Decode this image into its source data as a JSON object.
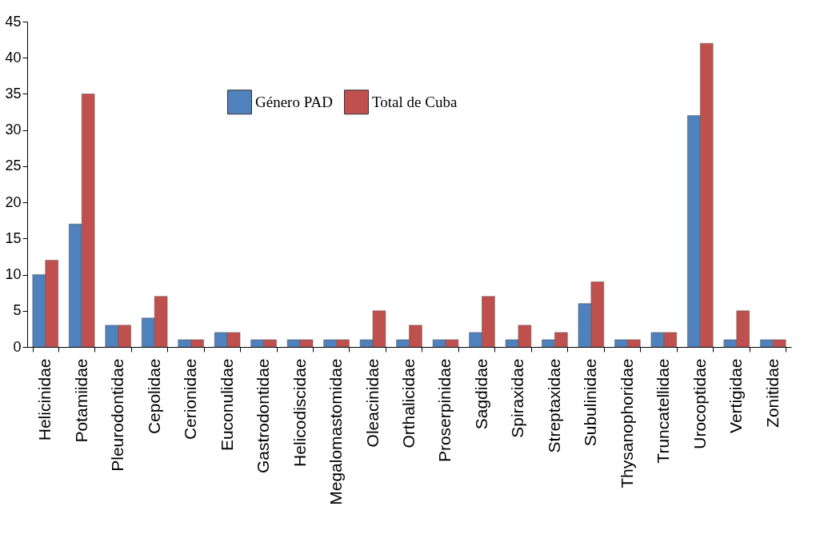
{
  "chart_data": {
    "type": "bar",
    "categories": [
      "Helicinidae",
      "Potamiidae",
      "Pleurodontidae",
      "Cepolidae",
      "Cerionidae",
      "Euconulidae",
      "Gastrodontidae",
      "Helicodiscidae",
      "Megalomastomidae",
      "Oleacinidae",
      "Orthalicidae",
      "Proserpinidae",
      "Sagdidae",
      "Spiraxidae",
      "Streptaxidae",
      "Subulinidae",
      "Thysanophoridae",
      "Truncatellidae",
      "Urocoptidae",
      "Vertigidae",
      "Zonitidae"
    ],
    "series": [
      {
        "name": "Género PAD",
        "color": "#4f81bd",
        "values": [
          10,
          17,
          3,
          4,
          1,
          2,
          1,
          1,
          1,
          1,
          1,
          1,
          2,
          1,
          1,
          6,
          1,
          2,
          32,
          1,
          1
        ]
      },
      {
        "name": "Total de Cuba",
        "color": "#c0504d",
        "values": [
          12,
          35,
          3,
          7,
          1,
          2,
          1,
          1,
          1,
          5,
          3,
          1,
          7,
          3,
          2,
          9,
          1,
          2,
          42,
          5,
          1
        ]
      }
    ],
    "ylim": [
      0,
      45
    ],
    "yticks": [
      0,
      5,
      10,
      15,
      20,
      25,
      30,
      35,
      40,
      45
    ],
    "grid": false,
    "legend": "top"
  }
}
